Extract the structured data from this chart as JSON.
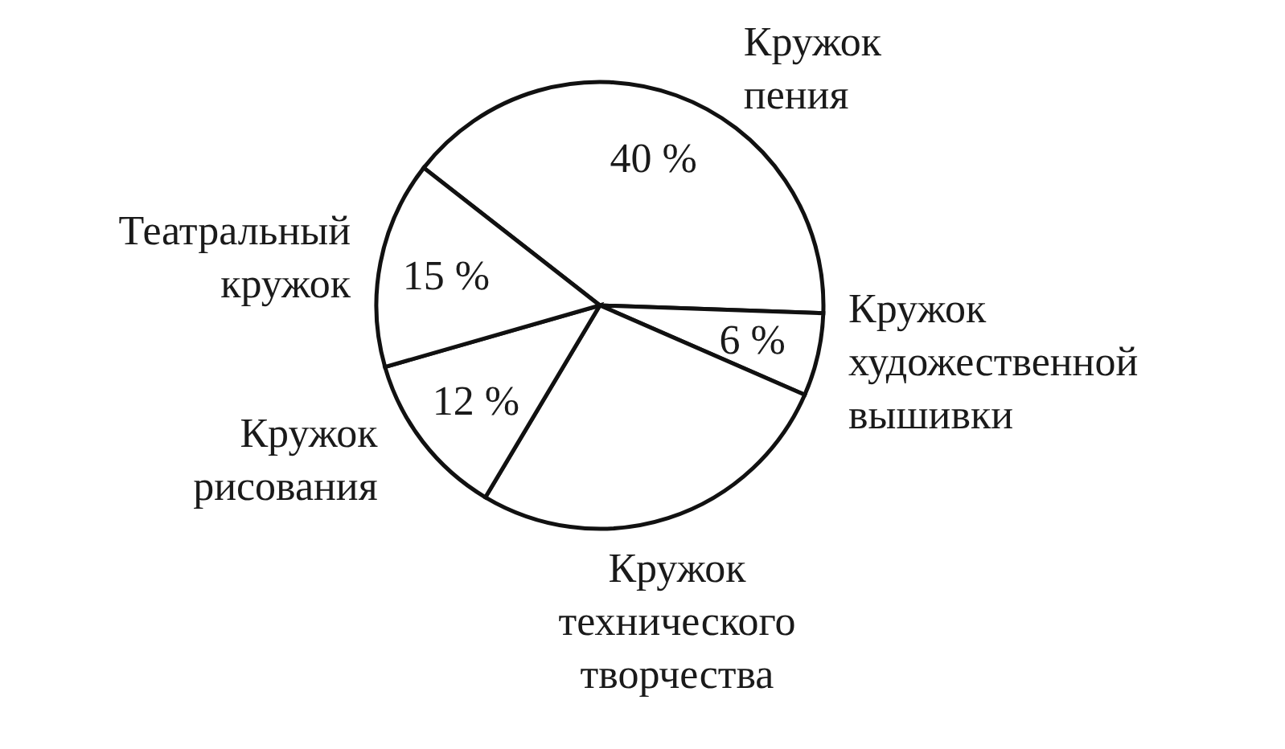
{
  "chart_data": {
    "type": "pie",
    "categories": [
      "Кружок пения",
      "Кружок художественной вышивки",
      "Кружок технического творчества",
      "Кружок рисования",
      "Театральный кружок"
    ],
    "values": [
      40,
      6,
      27,
      12,
      15
    ],
    "colors": [
      "#ffffff",
      "#ffffff",
      "#ffffff",
      "#ffffff",
      "#ffffff"
    ],
    "value_labels": [
      "40 %",
      "6 %",
      null,
      "12 %",
      "15 %"
    ]
  }
}
